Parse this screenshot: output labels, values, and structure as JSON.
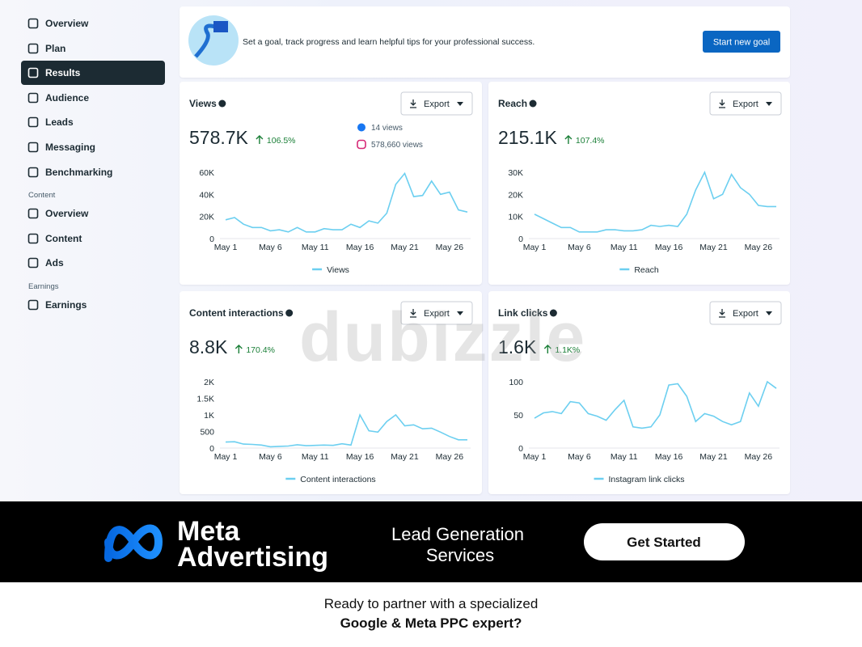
{
  "sidebar": {
    "items": [
      "Overview",
      "Plan",
      "Results",
      "Audience",
      "Leads",
      "Messaging",
      "Benchmarking"
    ],
    "sections": [
      {
        "heading": "Content",
        "items": [
          "Overview",
          "Content",
          "Ads"
        ]
      },
      {
        "heading": "Earnings",
        "items": [
          "Earnings"
        ]
      }
    ]
  },
  "goal_banner": {
    "text": "Set a goal, track progress and learn helpful tips for your professional success.",
    "button": "Start new goal"
  },
  "watermark": "dubizzle",
  "chart_data": [
    {
      "type": "line",
      "title": "Views",
      "metric": "578.7K",
      "change": "106.5%",
      "export_button": "Export",
      "breakdown": [
        "14 views",
        "578,660 views"
      ],
      "categories": [
        "May 1",
        null,
        null,
        null,
        null,
        "May 6",
        null,
        null,
        null,
        null,
        "May 11",
        null,
        null,
        null,
        null,
        "May 16",
        null,
        null,
        null,
        null,
        "May 21",
        null,
        null,
        null,
        null,
        "May 26",
        null,
        null
      ],
      "series": [
        {
          "name": "Views",
          "color": "#6ccff0",
          "values": [
            17000,
            19000,
            13000,
            10000,
            10000,
            7000,
            8000,
            6000,
            10000,
            6000,
            6000,
            9000,
            8000,
            8000,
            13000,
            10000,
            16000,
            14000,
            23000,
            49000,
            59000,
            38000,
            39000,
            52000,
            40000,
            42000,
            26000,
            24000
          ]
        }
      ],
      "ylim": [
        0,
        60000
      ],
      "yticks": [
        0,
        {
          "value": 20000,
          "label": "20K"
        },
        {
          "value": 40000,
          "label": "40K"
        },
        {
          "value": 60000,
          "label": "60K"
        }
      ],
      "grid": false
    },
    {
      "type": "line",
      "title": "Reach",
      "metric": "215.1K",
      "change": "107.4%",
      "export_button": "Export",
      "categories": [
        "May 1",
        null,
        null,
        null,
        null,
        "May 6",
        null,
        null,
        null,
        null,
        "May 11",
        null,
        null,
        null,
        null,
        "May 16",
        null,
        null,
        null,
        null,
        "May 21",
        null,
        null,
        null,
        null,
        "May 26",
        null,
        null
      ],
      "series": [
        {
          "name": "Reach",
          "color": "#6ccff0",
          "values": [
            11000,
            9000,
            7000,
            5000,
            5000,
            3000,
            3000,
            3000,
            4000,
            4000,
            3500,
            3500,
            4000,
            6000,
            5500,
            6000,
            5500,
            11000,
            22000,
            30000,
            18000,
            20000,
            29000,
            23000,
            20000,
            15000,
            14500,
            14500
          ]
        }
      ],
      "ylim": [
        0,
        30000
      ],
      "yticks": [
        0,
        {
          "value": 10000,
          "label": "10K"
        },
        {
          "value": 20000,
          "label": "20K"
        },
        {
          "value": 30000,
          "label": "30K"
        }
      ],
      "grid": false
    },
    {
      "type": "line",
      "title": "Content interactions",
      "metric": "8.8K",
      "change": "170.4%",
      "export_button": "Export",
      "categories": [
        "May 1",
        null,
        null,
        null,
        null,
        "May 6",
        null,
        null,
        null,
        null,
        "May 11",
        null,
        null,
        null,
        null,
        "May 16",
        null,
        null,
        null,
        null,
        "May 21",
        null,
        null,
        null,
        null,
        "May 26",
        null,
        null
      ],
      "series": [
        {
          "name": "Content interactions",
          "color": "#6ccff0",
          "values": [
            180,
            190,
            120,
            110,
            90,
            40,
            50,
            60,
            100,
            70,
            80,
            90,
            80,
            130,
            90,
            1000,
            520,
            480,
            800,
            1000,
            670,
            700,
            580,
            600,
            480,
            350,
            250,
            250
          ]
        }
      ],
      "ylim": [
        0,
        2000
      ],
      "yticks": [
        0,
        500,
        {
          "value": 1000,
          "label": "1K"
        },
        {
          "value": 1500,
          "label": "1.5K"
        },
        {
          "value": 2000,
          "label": "2K"
        }
      ],
      "grid": false
    },
    {
      "type": "line",
      "title": "Link clicks",
      "metric": "1.6K",
      "change": "1.1K%",
      "export_button": "Export",
      "categories": [
        "May 1",
        null,
        null,
        null,
        null,
        "May 6",
        null,
        null,
        null,
        null,
        "May 11",
        null,
        null,
        null,
        null,
        "May 16",
        null,
        null,
        null,
        null,
        "May 21",
        null,
        null,
        null,
        null,
        "May 26",
        null,
        null
      ],
      "series": [
        {
          "name": "Instagram link clicks",
          "color": "#6ccff0",
          "values": [
            45,
            53,
            55,
            52,
            70,
            68,
            52,
            48,
            42,
            58,
            72,
            32,
            30,
            32,
            50,
            95,
            97,
            78,
            40,
            52,
            48,
            40,
            35,
            40,
            83,
            63,
            100,
            90
          ]
        }
      ],
      "ylim": [
        0,
        100
      ],
      "yticks": [
        0,
        50,
        100
      ],
      "grid": false
    }
  ],
  "ad_banner": {
    "brand_line1": "Meta",
    "brand_line2": "Advertising",
    "tagline_line1": "Lead Generation",
    "tagline_line2": "Services",
    "button": "Get Started"
  },
  "footer": {
    "line1": "Ready to partner with a specialized",
    "line2": "Google & Meta PPC expert?"
  }
}
